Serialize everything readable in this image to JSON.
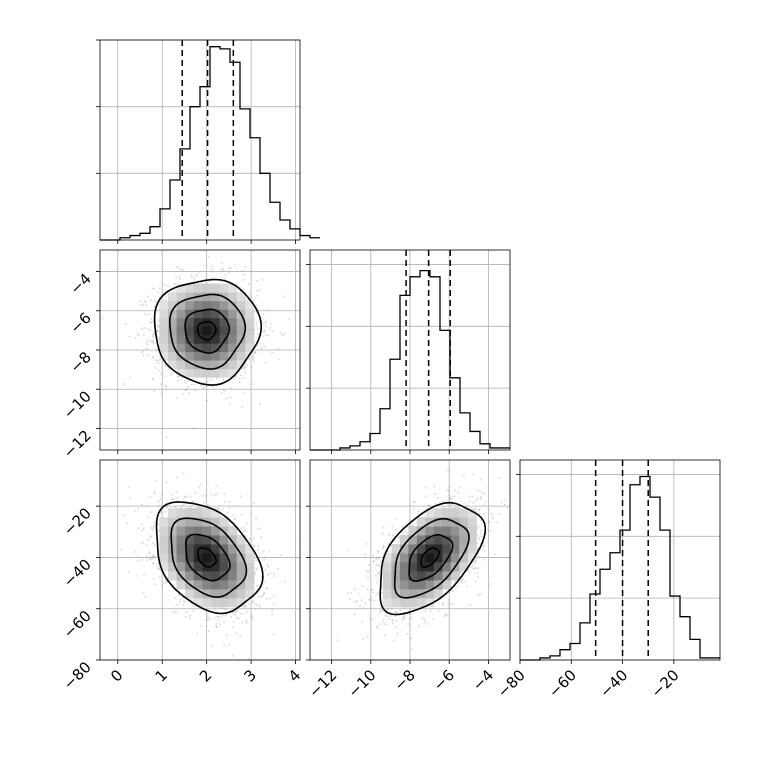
{
  "chart_data": {
    "type": "corner",
    "grid": true,
    "parameters": [
      {
        "index": 0,
        "range": [
          -0.4,
          4.1
        ],
        "ticks": [
          0,
          1,
          2,
          3,
          4
        ],
        "tick_labels": [
          "0",
          "1",
          "2",
          "3",
          "4"
        ],
        "quantiles": [
          1.45,
          2.02,
          2.6
        ],
        "hist_edges_start": -0.4,
        "hist_bin_width": 0.225,
        "hist_counts": [
          0,
          0,
          1,
          2,
          3,
          6,
          14,
          27,
          41,
          60,
          69,
          87,
          86,
          80,
          59,
          46,
          30,
          17,
          9,
          5,
          2,
          1
        ],
        "hist_ylim": [
          0,
          90
        ],
        "hist_yticks": [
          30,
          60,
          90
        ]
      },
      {
        "index": 1,
        "range": [
          -13.1,
          -2.9
        ],
        "ticks": [
          -12,
          -10,
          -8,
          -6,
          -4
        ],
        "tick_labels": [
          "−12",
          "−10",
          "−8",
          "−6",
          "−4"
        ],
        "quantiles": [
          -8.2,
          -7.05,
          -5.95
        ],
        "hist_edges_start": -13.1,
        "hist_bin_width": 0.51,
        "hist_counts": [
          0,
          0,
          0,
          1,
          2,
          4,
          8,
          20,
          44,
          75,
          84,
          87,
          84,
          58,
          35,
          18,
          9,
          3,
          1,
          1
        ],
        "hist_ylim": [
          0,
          97
        ],
        "hist_yticks": [
          30,
          60,
          90
        ]
      },
      {
        "index": 2,
        "range": [
          -80,
          -2
        ],
        "ticks": [
          -80,
          -60,
          -40,
          -20
        ],
        "tick_labels": [
          "−80",
          "−60",
          "−40",
          "−20"
        ],
        "quantiles": [
          -50.5,
          -40,
          -30
        ],
        "hist_edges_start": -80,
        "hist_bin_width": 3.9,
        "hist_counts": [
          0,
          0,
          1,
          2,
          5,
          8,
          18,
          32,
          44,
          52,
          63,
          85,
          89,
          79,
          63,
          31,
          21,
          10,
          1,
          1
        ],
        "hist_ylim": [
          0,
          97
        ],
        "hist_yticks": [
          30,
          60,
          90
        ]
      }
    ],
    "pairs": [
      {
        "x": 0,
        "y": 1,
        "center": [
          2.0,
          -7.0
        ],
        "sd": [
          0.58,
          1.3
        ],
        "corr": 0.0
      },
      {
        "x": 0,
        "y": 2,
        "center": [
          2.0,
          -40.0
        ],
        "sd": [
          0.58,
          10.5
        ],
        "corr": -0.35
      },
      {
        "x": 1,
        "y": 2,
        "center": [
          -7.0,
          -40.0
        ],
        "sd": [
          1.3,
          10.5
        ],
        "corr": 0.5
      }
    ]
  }
}
